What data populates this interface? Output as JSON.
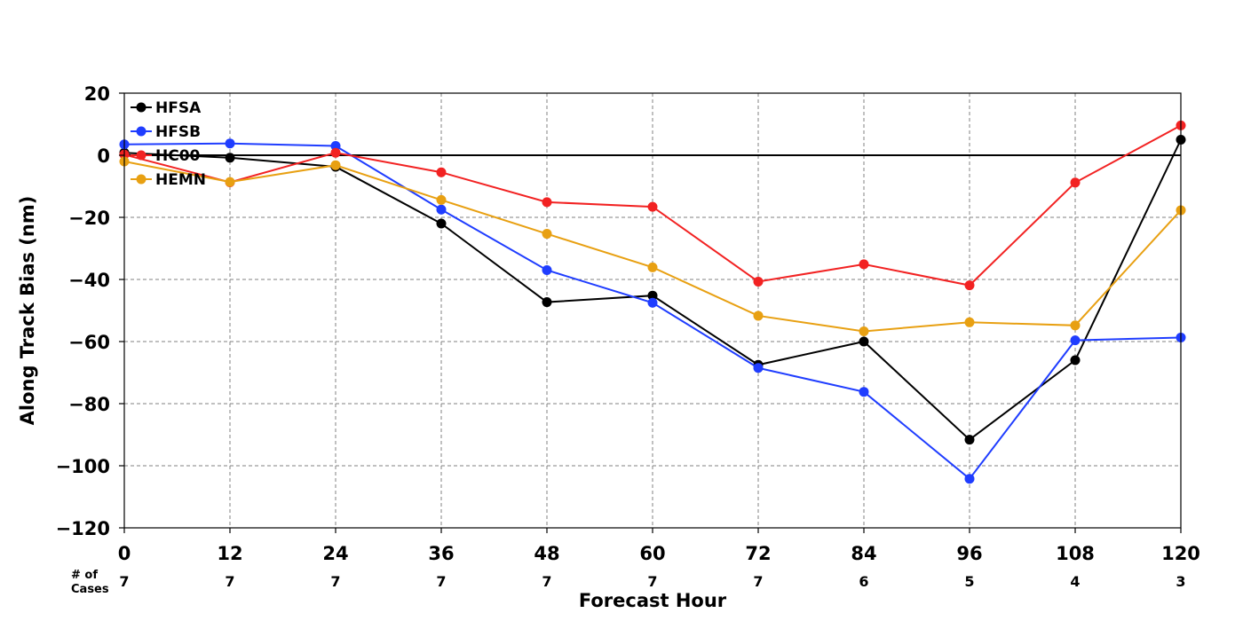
{
  "chart_data": {
    "type": "line",
    "title": "",
    "xlabel": "Forecast Hour",
    "ylabel": "Along Track Bias (nm)",
    "x": [
      0,
      12,
      24,
      36,
      48,
      60,
      72,
      84,
      96,
      108,
      120
    ],
    "x_tick_labels": [
      "0",
      "12",
      "24",
      "36",
      "48",
      "60",
      "72",
      "84",
      "96",
      "108",
      "120"
    ],
    "xlim": [
      0,
      120
    ],
    "ylim": [
      -120,
      20
    ],
    "y_ticks": [
      20,
      0,
      -20,
      -40,
      -60,
      -80,
      -100,
      -120
    ],
    "y_tick_labels": [
      "20",
      "0",
      "−20",
      "−40",
      "−60",
      "−80",
      "−100",
      "−120"
    ],
    "grid": true,
    "zero_line": true,
    "legend_position": "top-left",
    "cases_label": [
      "# of",
      "Cases"
    ],
    "cases": [
      "7",
      "7",
      "7",
      "7",
      "7",
      "7",
      "7",
      "6",
      "5",
      "4",
      "3"
    ],
    "series": [
      {
        "name": "HFSA",
        "color": "#000000",
        "values": [
          0.8,
          -0.8,
          -3.7,
          -22,
          -47.3,
          -45.2,
          -67.5,
          -60,
          -91.6,
          -66,
          5
        ]
      },
      {
        "name": "HFSB",
        "color": "#1f3dff",
        "values": [
          3.5,
          3.8,
          3,
          -17.5,
          -37,
          -47.5,
          -68.5,
          -76.2,
          -104.2,
          -59.6,
          -58.7
        ]
      },
      {
        "name": "HC00",
        "color": "#f22222",
        "values": [
          0.2,
          -8.7,
          0.8,
          -5.5,
          -15.1,
          -16.6,
          -40.7,
          -35.1,
          -41.9,
          -8.8,
          9.6
        ]
      },
      {
        "name": "HEMN",
        "color": "#e8a012",
        "values": [
          -2,
          -8.6,
          -3.2,
          -14.4,
          -25.3,
          -36.1,
          -51.7,
          -56.7,
          -53.8,
          -54.8,
          -17.7
        ]
      }
    ]
  }
}
